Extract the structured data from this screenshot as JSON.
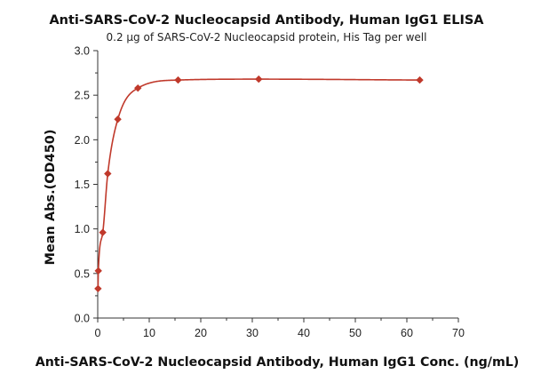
{
  "chart_data": {
    "type": "scatter",
    "title": "Anti-SARS-CoV-2 Nucleocapsid Antibody, Human IgG1 ELISA",
    "subtitle": "0.2 μg of SARS-CoV-2 Nucleocapsid protein, His Tag per well",
    "xlabel": "Anti-SARS-CoV-2 Nucleocapsid Antibody, Human IgG1 Conc. (ng/mL)",
    "ylabel": "Mean Abs.(OD450)",
    "xlim": [
      0,
      70
    ],
    "ylim": [
      0.0,
      3.0
    ],
    "xticks": [
      "0",
      "10",
      "20",
      "30",
      "40",
      "50",
      "60",
      "70"
    ],
    "yticks": [
      "0.0",
      "0.5",
      "1.0",
      "1.5",
      "2.0",
      "2.5",
      "3.0"
    ],
    "grid": false,
    "color": "#c0392b",
    "series": [
      {
        "points": [
          {
            "x": 0.06,
            "y": 0.33
          },
          {
            "x": 0.12,
            "y": 0.53
          },
          {
            "x": 0.98,
            "y": 0.96
          },
          {
            "x": 1.95,
            "y": 1.62
          },
          {
            "x": 3.9,
            "y": 2.23
          },
          {
            "x": 7.8,
            "y": 2.58
          },
          {
            "x": 15.6,
            "y": 2.67
          },
          {
            "x": 31.25,
            "y": 2.68
          },
          {
            "x": 62.5,
            "y": 2.67
          }
        ],
        "fit": "4PL"
      }
    ]
  }
}
